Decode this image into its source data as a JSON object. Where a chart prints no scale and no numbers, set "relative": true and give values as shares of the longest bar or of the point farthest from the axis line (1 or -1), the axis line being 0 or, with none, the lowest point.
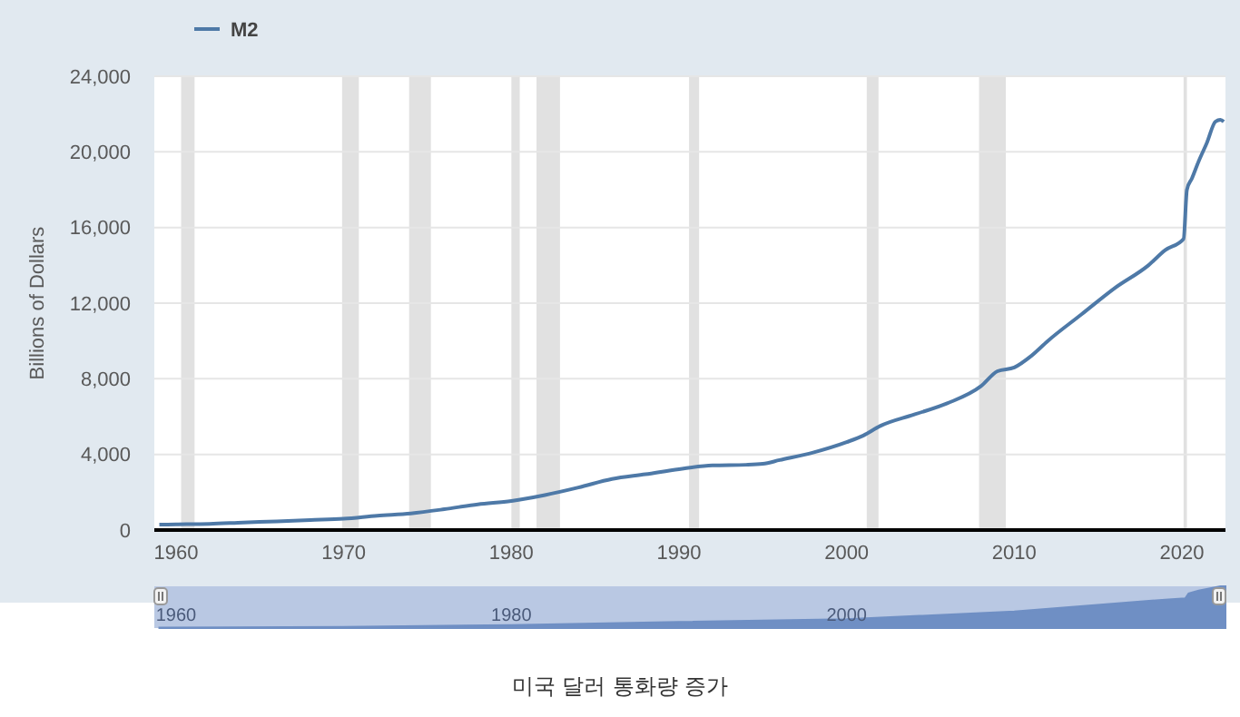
{
  "chart_data": [
    {
      "type": "line",
      "legend": "top left",
      "grid": "y",
      "ylabel": "Billions of Dollars",
      "annotations": [
        "미국 달러 통화량 증가"
      ],
      "xlim": [
        1958.7,
        2022.6
      ],
      "xticks": [
        1960,
        1970,
        1980,
        1990,
        2000,
        2010,
        2020
      ],
      "ylim": [
        0,
        24000
      ],
      "yticks": [
        0,
        {
          "value": 4000,
          "label": "4,000"
        },
        {
          "value": 8000,
          "label": "8,000"
        },
        {
          "value": 12000,
          "label": "12,000"
        },
        {
          "value": 16000,
          "label": "16,000"
        },
        {
          "value": 20000,
          "label": "20,000"
        },
        {
          "value": 24000,
          "label": "24,000"
        }
      ],
      "x": [
        1959,
        1960,
        1962,
        1964,
        1966,
        1968,
        1970,
        1972,
        1974,
        1976,
        1978,
        1980,
        1982,
        1984,
        1986,
        1988,
        1990,
        1992,
        1994,
        1995,
        1996,
        1998,
        2000,
        2001,
        2002,
        2004,
        2006,
        2008,
        2009,
        2010,
        2011,
        2012,
        2014,
        2016,
        2018,
        2019,
        2020.1,
        2020.3,
        2020.6,
        2021,
        2021.5,
        2022,
        2022.3,
        2022.5
      ],
      "series": [
        {
          "name": "M2",
          "color": "#4e79a7",
          "values": [
            286,
            300,
            330,
            400,
            460,
            530,
            600,
            760,
            880,
            1100,
            1360,
            1540,
            1850,
            2250,
            2700,
            2950,
            3220,
            3420,
            3450,
            3500,
            3700,
            4100,
            4650,
            5000,
            5500,
            6100,
            6700,
            7600,
            8400,
            8600,
            9200,
            10000,
            11400,
            12800,
            14000,
            14800,
            15400,
            18000,
            18600,
            19500,
            20500,
            21600,
            21700,
            21600
          ]
        }
      ],
      "bands": [
        {
          "axis": "x",
          "from": 1960.3,
          "to": 1961.1,
          "color": "#e1e1e1"
        },
        {
          "axis": "x",
          "from": 1969.9,
          "to": 1970.9,
          "color": "#e1e1e1"
        },
        {
          "axis": "x",
          "from": 1973.9,
          "to": 1975.2,
          "color": "#e1e1e1"
        },
        {
          "axis": "x",
          "from": 1980,
          "to": 1980.5,
          "color": "#e1e1e1"
        },
        {
          "axis": "x",
          "from": 1981.5,
          "to": 1982.9,
          "color": "#e1e1e1"
        },
        {
          "axis": "x",
          "from": 1990.6,
          "to": 1991.2,
          "color": "#e1e1e1"
        },
        {
          "axis": "x",
          "from": 2001.2,
          "to": 2001.9,
          "color": "#e1e1e1"
        },
        {
          "axis": "x",
          "from": 2007.9,
          "to": 2009.5,
          "color": "#e1e1e1"
        },
        {
          "axis": "x",
          "from": 2020.1,
          "to": 2020.3,
          "color": "#e1e1e1"
        }
      ]
    },
    {
      "type": "area",
      "relative": true,
      "xlim": [
        1958.7,
        2022.6
      ],
      "xticks": [
        1960,
        1980,
        2000
      ],
      "x": [
        1959,
        1970,
        1980,
        1990,
        2000,
        2010,
        2019,
        2020.2,
        2020.4,
        2021,
        2022.3,
        2022.6
      ],
      "series": [
        {
          "color": "#6f8fc4",
          "values": [
            0.013,
            0.028,
            0.071,
            0.148,
            0.214,
            0.396,
            0.682,
            0.71,
            0.83,
            0.9,
            1.0,
            1.0
          ]
        }
      ]
    }
  ]
}
